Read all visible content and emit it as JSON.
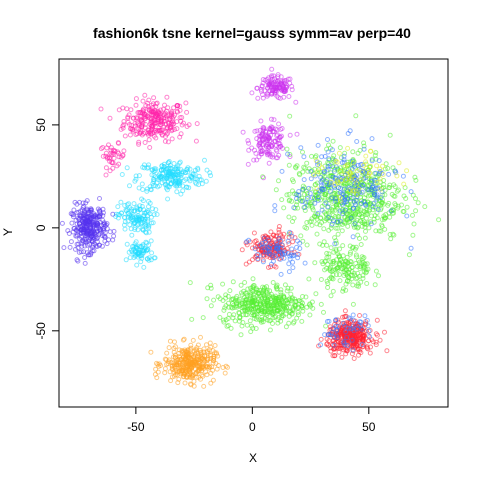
{
  "chart_data": {
    "type": "scatter",
    "title": "fashion6k tsne kernel=gauss symm=av perp=40",
    "xlabel": "X",
    "ylabel": "Y",
    "xlim": [
      -83,
      84
    ],
    "ylim": [
      -87,
      82
    ],
    "xticks": [
      -50,
      0,
      50
    ],
    "yticks": [
      -50,
      0,
      50
    ],
    "xtick_labels": [
      "-50",
      "0",
      "50"
    ],
    "ytick_labels": [
      "-50",
      "0",
      "50"
    ],
    "grid": false,
    "legend": "none",
    "point_style": "open circles, semi-transparent",
    "series": [
      {
        "color": "#ff22aa",
        "clusters": [
          {
            "center": [
              -42,
              52
            ],
            "spread": [
              12,
              9
            ],
            "n": 260
          },
          {
            "center": [
              -60,
              35
            ],
            "spread": [
              5,
              5
            ],
            "n": 40
          }
        ]
      },
      {
        "color": "#cc33ee",
        "clusters": [
          {
            "center": [
              10,
              68
            ],
            "spread": [
              7,
              5
            ],
            "n": 120
          },
          {
            "center": [
              7,
              42
            ],
            "spread": [
              7,
              8
            ],
            "n": 130
          }
        ]
      },
      {
        "color": "#22ddff",
        "clusters": [
          {
            "center": [
              -35,
              25
            ],
            "spread": [
              13,
              7
            ],
            "n": 200
          },
          {
            "center": [
              -50,
              5
            ],
            "spread": [
              7,
              7
            ],
            "n": 120
          },
          {
            "center": [
              -48,
              -12
            ],
            "spread": [
              5,
              5
            ],
            "n": 70
          }
        ]
      },
      {
        "color": "#5533ee",
        "clusters": [
          {
            "center": [
              -70,
              0
            ],
            "spread": [
              7,
              10
            ],
            "n": 300
          }
        ]
      },
      {
        "color": "#ffa020",
        "clusters": [
          {
            "center": [
              -27,
              -66
            ],
            "spread": [
              10,
              8
            ],
            "n": 330
          }
        ]
      },
      {
        "color": "#55ee33",
        "clusters": [
          {
            "center": [
              5,
              -37
            ],
            "spread": [
              17,
              9
            ],
            "n": 420
          },
          {
            "center": [
              40,
              15
            ],
            "spread": [
              22,
              20
            ],
            "n": 600
          },
          {
            "center": [
              40,
              -20
            ],
            "spread": [
              10,
              10
            ],
            "n": 150
          }
        ]
      },
      {
        "color": "#ff2233",
        "clusters": [
          {
            "center": [
              42,
              -53
            ],
            "spread": [
              9,
              7
            ],
            "n": 330
          },
          {
            "center": [
              8,
              -10
            ],
            "spread": [
              8,
              7
            ],
            "n": 150
          }
        ]
      },
      {
        "color": "#3377ff",
        "clusters": [
          {
            "center": [
              40,
              20
            ],
            "spread": [
              20,
              18
            ],
            "n": 200
          },
          {
            "center": [
              10,
              -12
            ],
            "spread": [
              10,
              8
            ],
            "n": 70
          },
          {
            "center": [
              40,
              -50
            ],
            "spread": [
              10,
              7
            ],
            "n": 50
          }
        ]
      },
      {
        "color": "#ddee22",
        "clusters": [
          {
            "center": [
              45,
              25
            ],
            "spread": [
              15,
              10
            ],
            "n": 60
          }
        ]
      }
    ]
  }
}
